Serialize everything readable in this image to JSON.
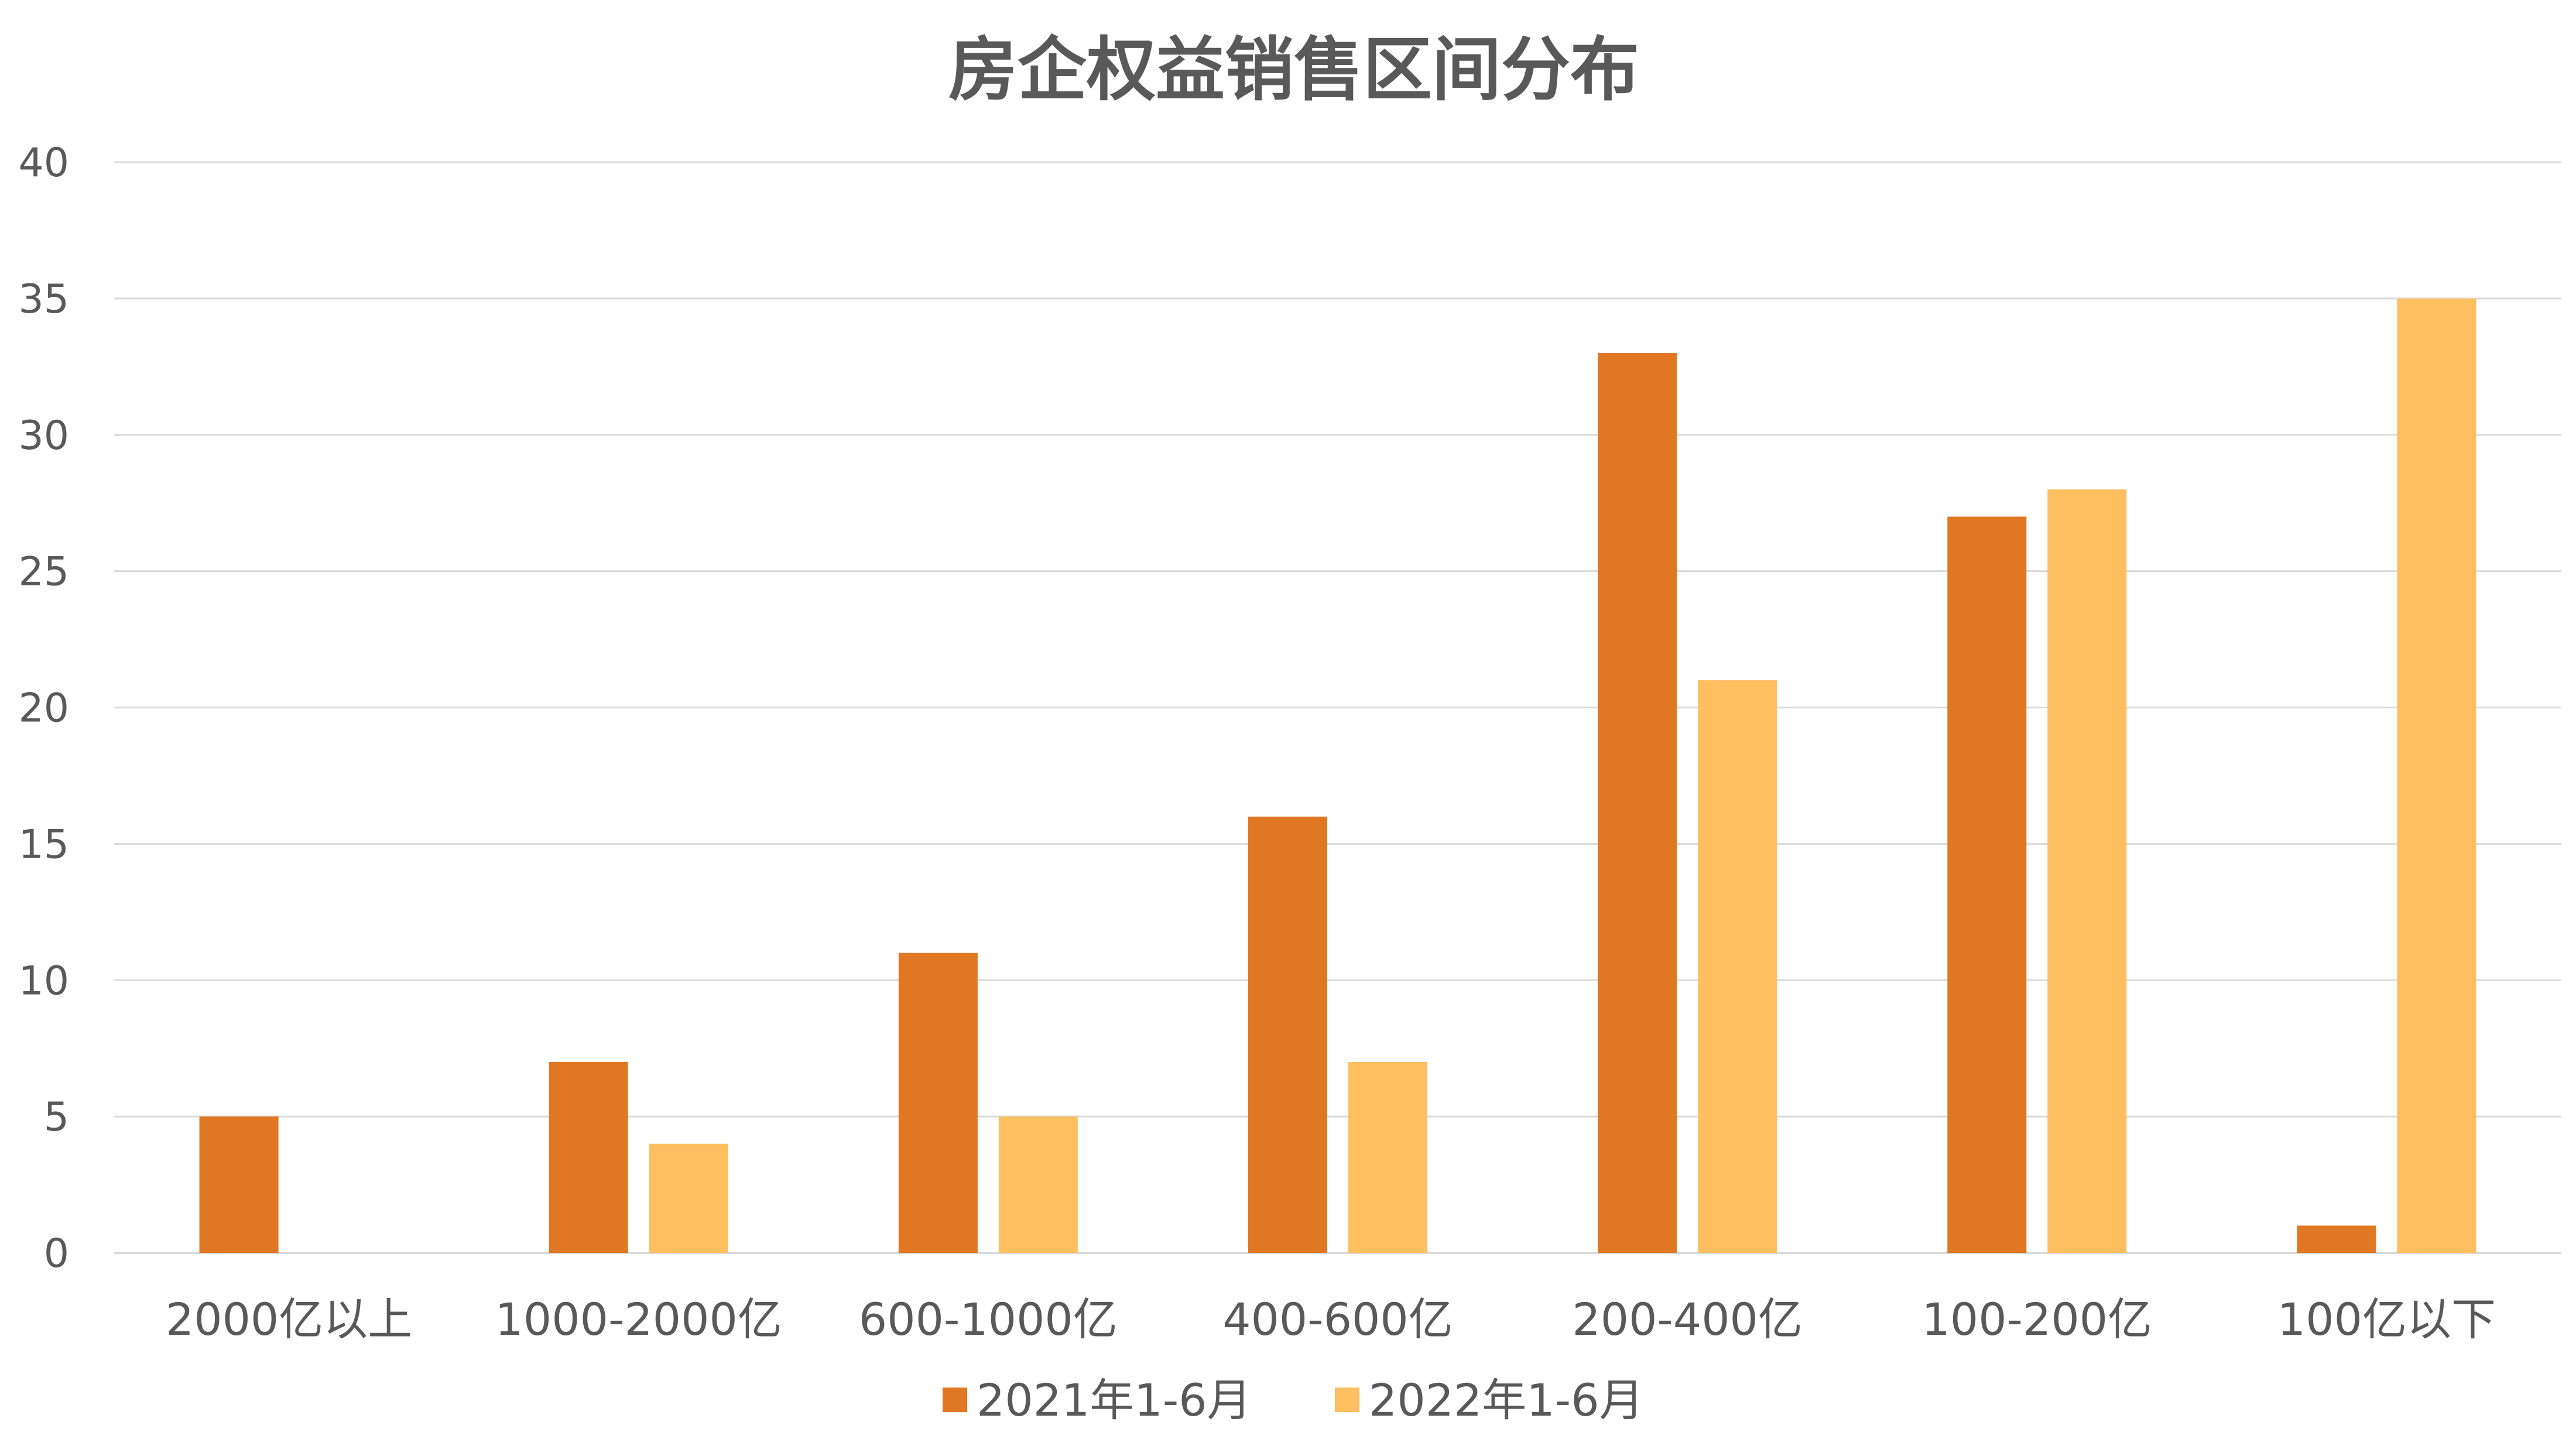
{
  "chart_data": {
    "type": "bar",
    "title": "房企权益销售区间分布",
    "categories": [
      "2000亿以上",
      "1000-2000亿",
      "600-1000亿",
      "400-600亿",
      "200-400亿",
      "100-200亿",
      "100亿以下"
    ],
    "series": [
      {
        "name": "2021年1-6月",
        "color": "#E07722",
        "values": [
          5,
          7,
          11,
          16,
          33,
          27,
          1
        ]
      },
      {
        "name": "2022年1-6月",
        "color": "#FDBF5F",
        "values": [
          0,
          4,
          5,
          7,
          21,
          28,
          35
        ]
      }
    ],
    "yticks": [
      "0",
      "5",
      "10",
      "15",
      "20",
      "25",
      "30",
      "35",
      "40"
    ],
    "ylim": [
      0,
      40
    ],
    "grid": true,
    "legend_position": "bottom"
  }
}
